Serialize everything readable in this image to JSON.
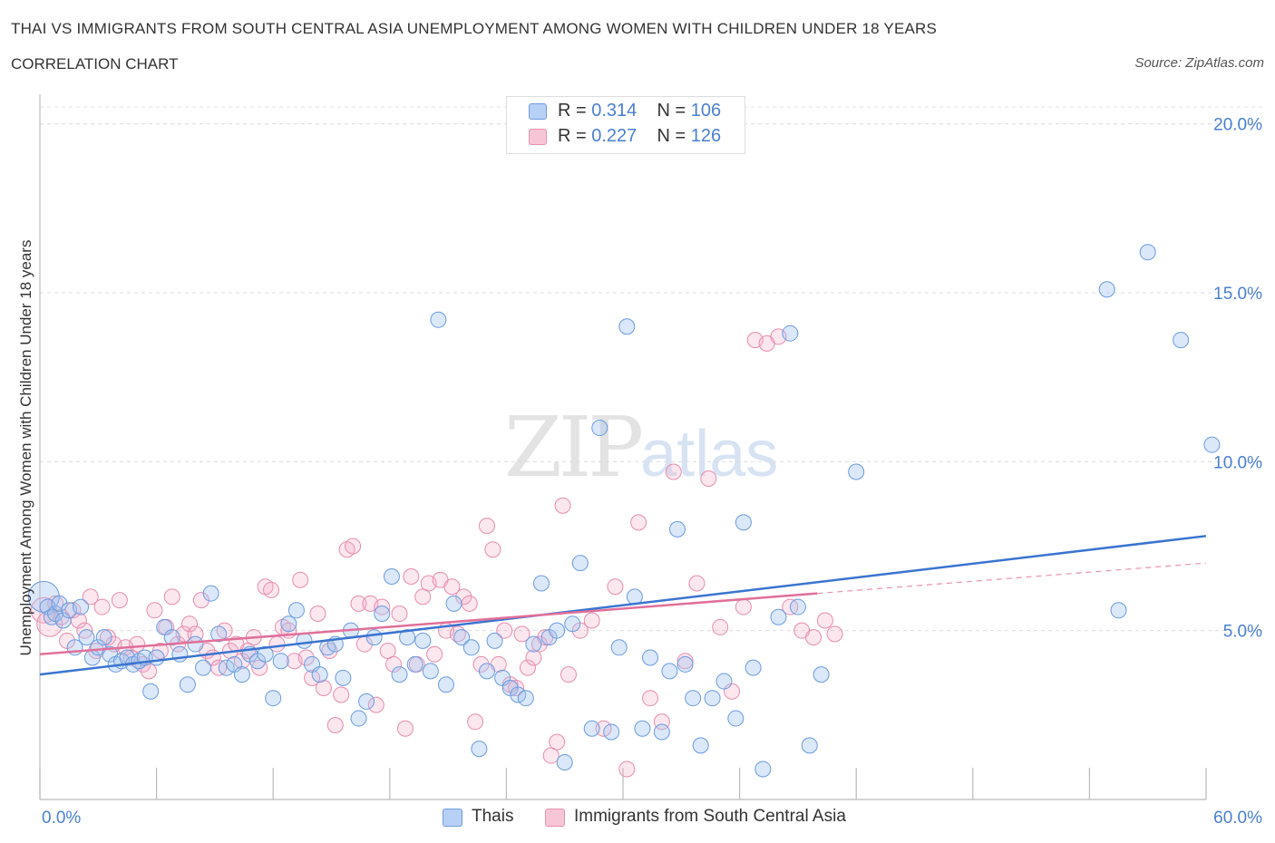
{
  "header": {
    "title": "THAI VS IMMIGRANTS FROM SOUTH CENTRAL ASIA UNEMPLOYMENT AMONG WOMEN WITH CHILDREN UNDER 18 YEARS",
    "subtitle": "CORRELATION CHART",
    "source": "Source: ZipAtlas.com"
  },
  "watermark": {
    "main": "ZIP",
    "sub": "atlas"
  },
  "colors": {
    "blue": "#5b8ed6",
    "blue_fill": "#aecbf2",
    "pink": "#e57aa0",
    "pink_fill": "#f5bcd0",
    "blue_line": "#3a74d0",
    "pink_line": "#e0709a",
    "axis_text": "#4a7fd0"
  },
  "legend_top": {
    "rows": [
      {
        "r_label": "R = ",
        "r_value": "0.314",
        "n_label": "N = ",
        "n_value": "106",
        "series": "Thais"
      },
      {
        "r_label": "R = ",
        "r_value": "0.227",
        "n_label": "N = ",
        "n_value": "126",
        "series": "Immigrants from South Central Asia"
      }
    ]
  },
  "legend_bottom": {
    "items": [
      "Thais",
      "Immigrants from South Central Asia"
    ]
  },
  "chart_data": {
    "type": "scatter",
    "title": "THAI VS IMMIGRANTS FROM SOUTH CENTRAL ASIA UNEMPLOYMENT AMONG WOMEN WITH CHILDREN UNDER 18 YEARS",
    "subtitle": "CORRELATION CHART",
    "xlabel": "",
    "ylabel": "Unemployment Among Women with Children Under 18 years",
    "xlim": [
      0,
      60
    ],
    "ylim": [
      0,
      20.5
    ],
    "x_tick_labels": [
      "0.0%",
      "60.0%"
    ],
    "y_ticks": [
      5,
      10,
      15,
      20
    ],
    "y_tick_labels": [
      "5.0%",
      "10.0%",
      "15.0%",
      "20.0%"
    ],
    "grid": true,
    "legend": "top-center",
    "series": [
      {
        "name": "Thais",
        "color": "#5b8ed6",
        "R": 0.314,
        "N": 106,
        "trend": {
          "x": [
            0,
            60
          ],
          "y": [
            3.7,
            7.8
          ]
        },
        "points": [
          [
            0.2,
            6.0
          ],
          [
            0.4,
            5.7
          ],
          [
            0.6,
            5.4
          ],
          [
            0.8,
            5.5
          ],
          [
            1.0,
            5.8
          ],
          [
            1.2,
            5.3
          ],
          [
            1.5,
            5.6
          ],
          [
            1.8,
            4.5
          ],
          [
            2.1,
            5.7
          ],
          [
            2.4,
            4.8
          ],
          [
            2.7,
            4.2
          ],
          [
            3.0,
            4.5
          ],
          [
            3.3,
            4.8
          ],
          [
            3.6,
            4.3
          ],
          [
            3.9,
            4.0
          ],
          [
            4.2,
            4.1
          ],
          [
            4.5,
            4.2
          ],
          [
            4.8,
            4.0
          ],
          [
            5.1,
            4.1
          ],
          [
            5.4,
            4.2
          ],
          [
            5.7,
            3.2
          ],
          [
            6.0,
            4.2
          ],
          [
            6.4,
            5.1
          ],
          [
            6.8,
            4.8
          ],
          [
            7.2,
            4.3
          ],
          [
            7.6,
            3.4
          ],
          [
            8.0,
            4.6
          ],
          [
            8.4,
            3.9
          ],
          [
            8.8,
            6.1
          ],
          [
            9.2,
            4.9
          ],
          [
            9.6,
            3.9
          ],
          [
            10.0,
            4.0
          ],
          [
            10.4,
            3.7
          ],
          [
            10.8,
            4.3
          ],
          [
            11.2,
            4.1
          ],
          [
            11.6,
            4.3
          ],
          [
            12.0,
            3.0
          ],
          [
            12.4,
            4.1
          ],
          [
            12.8,
            5.2
          ],
          [
            13.2,
            5.6
          ],
          [
            13.6,
            4.7
          ],
          [
            14.0,
            4.0
          ],
          [
            14.4,
            3.7
          ],
          [
            14.8,
            4.5
          ],
          [
            15.2,
            4.6
          ],
          [
            15.6,
            3.6
          ],
          [
            16.0,
            5.0
          ],
          [
            16.4,
            2.4
          ],
          [
            16.8,
            2.9
          ],
          [
            17.2,
            4.8
          ],
          [
            17.6,
            5.5
          ],
          [
            18.1,
            6.6
          ],
          [
            18.5,
            3.7
          ],
          [
            18.9,
            4.8
          ],
          [
            19.3,
            4.0
          ],
          [
            19.7,
            4.7
          ],
          [
            20.1,
            3.8
          ],
          [
            20.5,
            14.2
          ],
          [
            20.9,
            3.4
          ],
          [
            21.3,
            5.8
          ],
          [
            21.7,
            4.8
          ],
          [
            22.2,
            4.5
          ],
          [
            22.6,
            1.5
          ],
          [
            23.0,
            3.8
          ],
          [
            23.4,
            4.7
          ],
          [
            23.8,
            3.6
          ],
          [
            24.2,
            3.3
          ],
          [
            24.6,
            3.1
          ],
          [
            25.0,
            3.0
          ],
          [
            25.4,
            4.6
          ],
          [
            25.8,
            6.4
          ],
          [
            26.2,
            4.8
          ],
          [
            26.6,
            5.0
          ],
          [
            27.0,
            1.1
          ],
          [
            27.4,
            5.2
          ],
          [
            27.8,
            7.0
          ],
          [
            28.4,
            2.1
          ],
          [
            28.8,
            11.0
          ],
          [
            29.4,
            2.0
          ],
          [
            29.8,
            4.5
          ],
          [
            30.2,
            14.0
          ],
          [
            30.6,
            6.0
          ],
          [
            31.0,
            2.1
          ],
          [
            31.4,
            4.2
          ],
          [
            32.0,
            2.0
          ],
          [
            32.4,
            3.8
          ],
          [
            32.8,
            8.0
          ],
          [
            33.2,
            4.0
          ],
          [
            33.6,
            3.0
          ],
          [
            34.0,
            1.6
          ],
          [
            34.6,
            3.0
          ],
          [
            35.2,
            3.5
          ],
          [
            35.8,
            2.4
          ],
          [
            36.2,
            8.2
          ],
          [
            36.7,
            3.9
          ],
          [
            37.2,
            0.9
          ],
          [
            38.0,
            5.4
          ],
          [
            38.6,
            13.8
          ],
          [
            39.0,
            5.7
          ],
          [
            39.6,
            1.6
          ],
          [
            40.2,
            3.7
          ],
          [
            42.0,
            9.7
          ],
          [
            54.9,
            15.1
          ],
          [
            55.5,
            5.6
          ],
          [
            57.0,
            16.2
          ],
          [
            58.7,
            13.6
          ],
          [
            60.3,
            10.5
          ]
        ]
      },
      {
        "name": "Immigrants from South Central Asia",
        "color": "#e57aa0",
        "R": 0.227,
        "N": 126,
        "trend": {
          "x": [
            0,
            40
          ],
          "y": [
            4.3,
            6.1
          ]
        },
        "points": [
          [
            0.2,
            5.6
          ],
          [
            0.5,
            5.2
          ],
          [
            0.8,
            5.8
          ],
          [
            1.1,
            5.4
          ],
          [
            1.4,
            4.7
          ],
          [
            1.7,
            5.6
          ],
          [
            2.0,
            5.3
          ],
          [
            2.3,
            5.0
          ],
          [
            2.6,
            6.0
          ],
          [
            2.9,
            4.4
          ],
          [
            3.2,
            5.7
          ],
          [
            3.5,
            4.8
          ],
          [
            3.8,
            4.6
          ],
          [
            4.1,
            5.9
          ],
          [
            4.4,
            4.5
          ],
          [
            4.7,
            4.2
          ],
          [
            5.0,
            4.6
          ],
          [
            5.3,
            4.0
          ],
          [
            5.6,
            3.8
          ],
          [
            5.9,
            5.6
          ],
          [
            6.2,
            4.4
          ],
          [
            6.5,
            5.1
          ],
          [
            6.8,
            6.0
          ],
          [
            7.1,
            4.6
          ],
          [
            7.4,
            4.9
          ],
          [
            7.7,
            5.2
          ],
          [
            8.0,
            4.9
          ],
          [
            8.3,
            5.9
          ],
          [
            8.6,
            4.4
          ],
          [
            8.9,
            4.2
          ],
          [
            9.2,
            3.9
          ],
          [
            9.5,
            5.0
          ],
          [
            9.8,
            4.4
          ],
          [
            10.1,
            4.6
          ],
          [
            10.4,
            4.1
          ],
          [
            10.7,
            4.4
          ],
          [
            11.0,
            4.8
          ],
          [
            11.3,
            3.9
          ],
          [
            11.6,
            6.3
          ],
          [
            11.9,
            6.2
          ],
          [
            12.2,
            4.6
          ],
          [
            12.5,
            5.1
          ],
          [
            12.8,
            5.0
          ],
          [
            13.1,
            4.1
          ],
          [
            13.4,
            6.5
          ],
          [
            13.7,
            4.2
          ],
          [
            14.0,
            3.6
          ],
          [
            14.3,
            5.5
          ],
          [
            14.6,
            3.3
          ],
          [
            14.9,
            4.4
          ],
          [
            15.2,
            2.2
          ],
          [
            15.5,
            3.1
          ],
          [
            15.8,
            7.4
          ],
          [
            16.1,
            7.5
          ],
          [
            16.4,
            5.8
          ],
          [
            16.7,
            4.6
          ],
          [
            17.0,
            5.8
          ],
          [
            17.3,
            2.8
          ],
          [
            17.6,
            5.7
          ],
          [
            17.9,
            4.4
          ],
          [
            18.2,
            4.0
          ],
          [
            18.5,
            5.5
          ],
          [
            18.8,
            2.1
          ],
          [
            19.1,
            6.6
          ],
          [
            19.4,
            4.0
          ],
          [
            19.7,
            6.0
          ],
          [
            20.0,
            6.4
          ],
          [
            20.3,
            4.3
          ],
          [
            20.6,
            6.5
          ],
          [
            20.9,
            5.0
          ],
          [
            21.2,
            6.3
          ],
          [
            21.5,
            4.9
          ],
          [
            21.8,
            6.0
          ],
          [
            22.1,
            5.8
          ],
          [
            22.4,
            2.3
          ],
          [
            22.7,
            4.0
          ],
          [
            23.0,
            8.1
          ],
          [
            23.3,
            7.4
          ],
          [
            23.6,
            4.0
          ],
          [
            23.9,
            5.0
          ],
          [
            24.2,
            3.4
          ],
          [
            24.5,
            3.3
          ],
          [
            24.8,
            4.9
          ],
          [
            25.1,
            3.9
          ],
          [
            25.4,
            4.2
          ],
          [
            25.7,
            4.6
          ],
          [
            26.0,
            4.8
          ],
          [
            26.3,
            1.3
          ],
          [
            26.6,
            1.7
          ],
          [
            26.9,
            8.7
          ],
          [
            27.2,
            3.7
          ],
          [
            27.8,
            5.0
          ],
          [
            28.4,
            5.3
          ],
          [
            29.0,
            2.1
          ],
          [
            29.6,
            6.3
          ],
          [
            30.2,
            0.9
          ],
          [
            30.8,
            8.2
          ],
          [
            31.4,
            3.0
          ],
          [
            32.0,
            2.3
          ],
          [
            32.6,
            9.7
          ],
          [
            33.2,
            4.1
          ],
          [
            33.8,
            6.4
          ],
          [
            34.4,
            9.5
          ],
          [
            35.0,
            5.1
          ],
          [
            35.6,
            3.2
          ],
          [
            36.2,
            5.7
          ],
          [
            36.8,
            13.6
          ],
          [
            37.4,
            13.5
          ],
          [
            38.0,
            13.7
          ],
          [
            38.6,
            5.7
          ],
          [
            39.2,
            5.0
          ],
          [
            39.8,
            4.8
          ],
          [
            40.4,
            5.3
          ],
          [
            40.9,
            4.9
          ]
        ]
      }
    ]
  }
}
